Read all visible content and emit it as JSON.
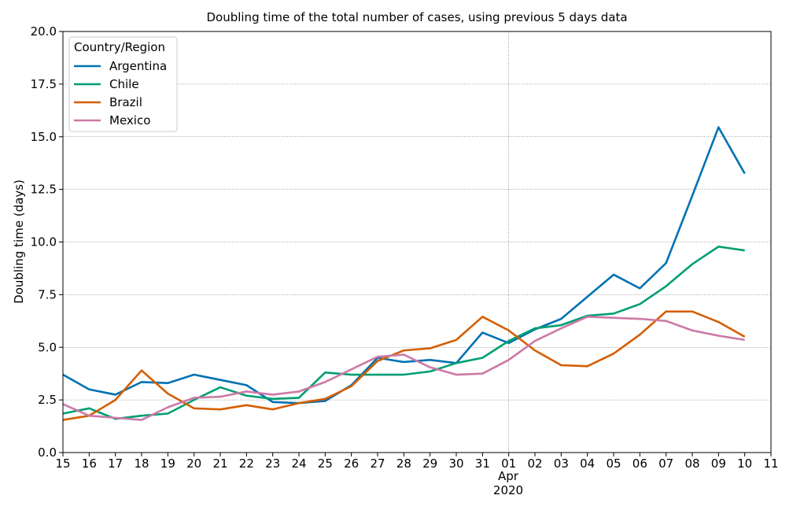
{
  "chart_data": {
    "type": "line",
    "title": "Doubling time of the total number of cases, using previous 5 days data",
    "ylabel": "Doubling time (days)",
    "xlabel": "",
    "x_tick_labels": [
      "15",
      "16",
      "17",
      "18",
      "19",
      "20",
      "21",
      "22",
      "23",
      "24",
      "25",
      "26",
      "27",
      "28",
      "29",
      "30",
      "31",
      "01",
      "02",
      "03",
      "04",
      "05",
      "06",
      "07",
      "08",
      "09",
      "10",
      "11"
    ],
    "x_secondary_label": {
      "month": "Apr",
      "year": "2020"
    },
    "y_ticks": [
      "0.0",
      "2.5",
      "5.0",
      "7.5",
      "10.0",
      "12.5",
      "15.0",
      "17.5",
      "20.0"
    ],
    "ylim": [
      0,
      20
    ],
    "grid": true,
    "legend": {
      "title": "Country/Region",
      "placement": "upper-left"
    },
    "x_dates": [
      "2020-03-15",
      "2020-03-16",
      "2020-03-17",
      "2020-03-18",
      "2020-03-19",
      "2020-03-20",
      "2020-03-21",
      "2020-03-22",
      "2020-03-23",
      "2020-03-24",
      "2020-03-25",
      "2020-03-26",
      "2020-03-27",
      "2020-03-28",
      "2020-03-29",
      "2020-03-30",
      "2020-03-31",
      "2020-04-01",
      "2020-04-02",
      "2020-04-03",
      "2020-04-04",
      "2020-04-05",
      "2020-04-06",
      "2020-04-07",
      "2020-04-08",
      "2020-04-09",
      "2020-04-10"
    ],
    "series": [
      {
        "name": "Argentina",
        "color": "#0072b2",
        "values": [
          3.7,
          3.0,
          2.75,
          3.35,
          3.3,
          3.7,
          3.45,
          3.2,
          2.4,
          2.35,
          2.45,
          3.2,
          4.5,
          4.3,
          4.4,
          4.25,
          5.7,
          5.2,
          5.85,
          6.35,
          7.4,
          8.45,
          7.8,
          9.0,
          12.2,
          15.45,
          13.25
        ]
      },
      {
        "name": "Chile",
        "color": "#009e73",
        "values": [
          1.85,
          2.1,
          1.6,
          1.75,
          1.85,
          2.5,
          3.1,
          2.7,
          2.55,
          2.6,
          3.8,
          3.7,
          3.7,
          3.7,
          3.85,
          4.25,
          4.5,
          5.3,
          5.9,
          6.05,
          6.5,
          6.6,
          7.05,
          7.9,
          8.95,
          9.78,
          9.6
        ]
      },
      {
        "name": "Brazil",
        "color": "#d55e00",
        "values": [
          1.55,
          1.75,
          2.5,
          3.9,
          2.8,
          2.1,
          2.05,
          2.25,
          2.05,
          2.35,
          2.55,
          3.15,
          4.35,
          4.85,
          4.95,
          5.35,
          6.45,
          5.8,
          4.85,
          4.15,
          4.1,
          4.7,
          5.6,
          6.7,
          6.7,
          6.2,
          5.5
        ]
      },
      {
        "name": "Mexico",
        "color": "#cc79a7",
        "values": [
          2.3,
          1.75,
          1.65,
          1.55,
          2.15,
          2.6,
          2.65,
          2.9,
          2.75,
          2.9,
          3.35,
          3.95,
          4.55,
          4.65,
          4.05,
          3.7,
          3.75,
          4.4,
          5.3,
          5.9,
          6.45,
          6.4,
          6.35,
          6.25,
          5.8,
          5.55,
          5.35
        ]
      }
    ]
  }
}
